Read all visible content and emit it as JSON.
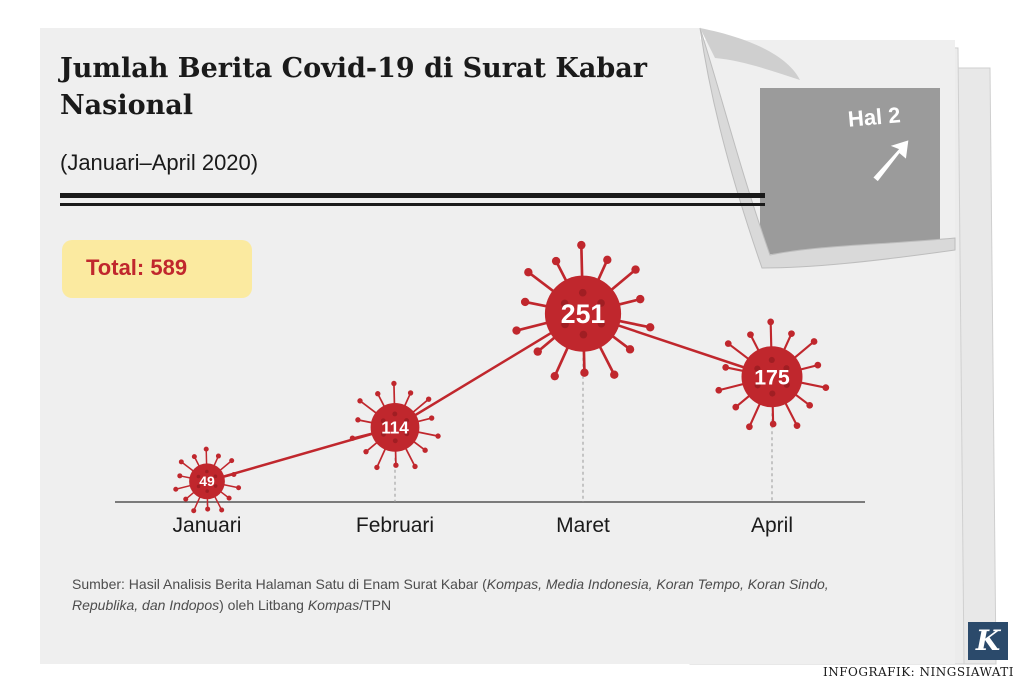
{
  "title": "Jumlah Berita Covid-19 di Surat Kabar Nasional",
  "subtitle": "(Januari–April 2020)",
  "total_label": "Total: 589",
  "page_tab": "Hal 2",
  "source": {
    "lead": "Sumber: Hasil Analisis Berita Halaman Satu di Enam Surat Kabar (",
    "papers1": "Kompas, Media Indonesia, Koran Tempo, Koran Sindo, Republika, dan Indopos",
    "mid": ") oleh Litbang ",
    "papers2": "Kompas",
    "tail": "/TPN"
  },
  "logo_letter": "K",
  "credit": "INFOGRAFIK: NINGSIAWATI",
  "colors": {
    "virus": "#c0272d",
    "line": "#c0272d",
    "paper": "#efefef",
    "total_bg": "#fbeaa0"
  },
  "chart_data": {
    "type": "line",
    "categories": [
      "Januari",
      "Februari",
      "Maret",
      "April"
    ],
    "values": [
      49,
      114,
      251,
      175
    ],
    "title": "Jumlah Berita Covid-19 di Surat Kabar Nasional",
    "subtitle": "(Januari–April 2020)",
    "marker": "virus",
    "data_labels": true,
    "grid": false
  }
}
